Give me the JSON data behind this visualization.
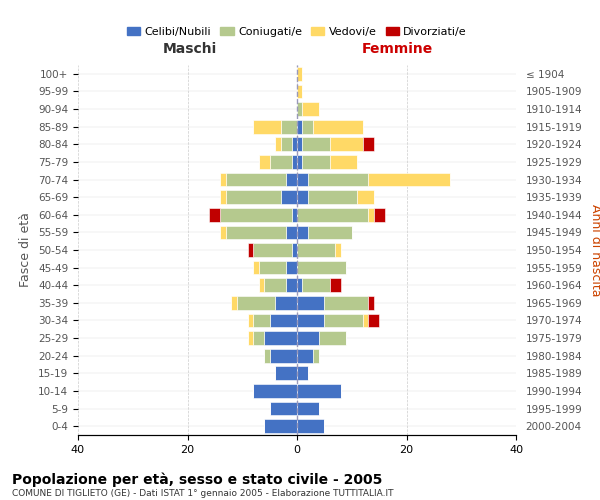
{
  "age_groups": [
    "0-4",
    "5-9",
    "10-14",
    "15-19",
    "20-24",
    "25-29",
    "30-34",
    "35-39",
    "40-44",
    "45-49",
    "50-54",
    "55-59",
    "60-64",
    "65-69",
    "70-74",
    "75-79",
    "80-84",
    "85-89",
    "90-94",
    "95-99",
    "100+"
  ],
  "birth_years": [
    "2000-2004",
    "1995-1999",
    "1990-1994",
    "1985-1989",
    "1980-1984",
    "1975-1979",
    "1970-1974",
    "1965-1969",
    "1960-1964",
    "1955-1959",
    "1950-1954",
    "1945-1949",
    "1940-1944",
    "1935-1939",
    "1930-1934",
    "1925-1929",
    "1920-1924",
    "1915-1919",
    "1910-1914",
    "1905-1909",
    "≤ 1904"
  ],
  "maschi": {
    "celibi": [
      6,
      5,
      8,
      4,
      5,
      6,
      5,
      4,
      2,
      2,
      1,
      2,
      1,
      3,
      2,
      1,
      1,
      0,
      0,
      0,
      0
    ],
    "coniugati": [
      0,
      0,
      0,
      0,
      1,
      2,
      3,
      7,
      4,
      5,
      7,
      11,
      13,
      10,
      11,
      4,
      2,
      3,
      0,
      0,
      0
    ],
    "vedovi": [
      0,
      0,
      0,
      0,
      0,
      1,
      1,
      1,
      1,
      1,
      0,
      1,
      0,
      1,
      1,
      2,
      1,
      5,
      0,
      0,
      0
    ],
    "divorziati": [
      0,
      0,
      0,
      0,
      0,
      0,
      0,
      0,
      0,
      0,
      1,
      0,
      2,
      0,
      0,
      0,
      0,
      0,
      0,
      0,
      0
    ]
  },
  "femmine": {
    "nubili": [
      5,
      4,
      8,
      2,
      3,
      4,
      5,
      5,
      1,
      0,
      0,
      2,
      0,
      2,
      2,
      1,
      1,
      1,
      0,
      0,
      0
    ],
    "coniugate": [
      0,
      0,
      0,
      0,
      1,
      5,
      7,
      8,
      5,
      9,
      7,
      8,
      13,
      9,
      11,
      5,
      5,
      2,
      1,
      0,
      0
    ],
    "vedove": [
      0,
      0,
      0,
      0,
      0,
      0,
      1,
      0,
      0,
      0,
      1,
      0,
      1,
      3,
      15,
      5,
      6,
      9,
      3,
      1,
      1
    ],
    "divorziate": [
      0,
      0,
      0,
      0,
      0,
      0,
      2,
      1,
      2,
      0,
      0,
      0,
      2,
      0,
      0,
      0,
      2,
      0,
      0,
      0,
      0
    ]
  },
  "colors": {
    "celibi_nubili": "#4472C4",
    "coniugati": "#B5C98E",
    "vedovi": "#FFD966",
    "divorziati": "#C00000"
  },
  "xlim": [
    -40,
    40
  ],
  "xticks": [
    -40,
    -20,
    0,
    20,
    40
  ],
  "xticklabels": [
    "40",
    "20",
    "0",
    "20",
    "40"
  ],
  "title": "Popolazione per età, sesso e stato civile - 2005",
  "subtitle": "COMUNE DI TIGLIETO (GE) - Dati ISTAT 1° gennaio 2005 - Elaborazione TUTTITALIA.IT",
  "ylabel_left": "Fasce di età",
  "ylabel_right": "Anni di nascita",
  "label_maschi": "Maschi",
  "label_femmine": "Femmine",
  "legend_labels": [
    "Celibi/Nubili",
    "Coniugati/e",
    "Vedovi/e",
    "Divorziati/e"
  ],
  "background_color": "#ffffff",
  "grid_color": "#cccccc"
}
